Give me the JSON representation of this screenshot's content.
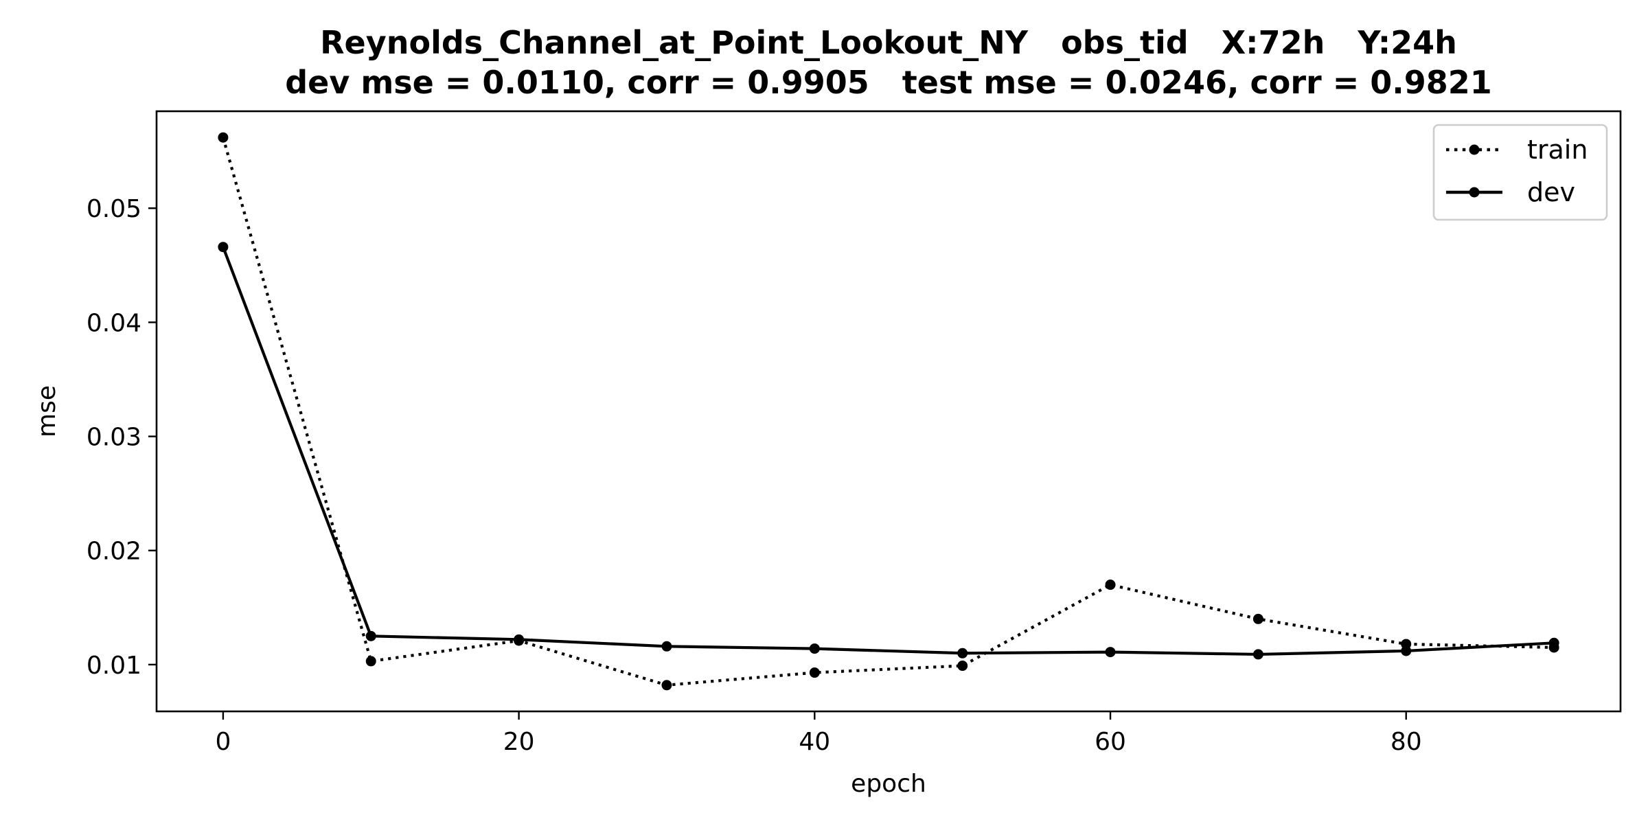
{
  "chart_data": {
    "type": "line",
    "title_line1": "Reynolds_Channel_at_Point_Lookout_NY   obs_tid   X:72h   Y:24h",
    "title_line2": "dev mse = 0.0110, corr = 0.9905   test mse = 0.0246, corr = 0.9821",
    "xlabel": "epoch",
    "ylabel": "mse",
    "x": [
      0,
      10,
      20,
      30,
      40,
      50,
      60,
      70,
      80,
      90
    ],
    "xlim": [
      -4.5,
      94.5
    ],
    "ylim": [
      0.0059,
      0.0585
    ],
    "xticks": [
      0,
      20,
      40,
      60,
      80
    ],
    "xtick_labels": [
      "0",
      "20",
      "40",
      "60",
      "80"
    ],
    "yticks": [
      0.01,
      0.02,
      0.03,
      0.04,
      0.05
    ],
    "ytick_labels": [
      "0.01",
      "0.02",
      "0.03",
      "0.04",
      "0.05"
    ],
    "grid": false,
    "legend_position": "top-right",
    "series": [
      {
        "name": "train",
        "linestyle": "dotted",
        "marker": "dot",
        "color": "#000000",
        "values": [
          0.0562,
          0.0103,
          0.0121,
          0.0082,
          0.0093,
          0.0099,
          0.017,
          0.014,
          0.0118,
          0.0115
        ]
      },
      {
        "name": "dev",
        "linestyle": "solid",
        "marker": "dot",
        "color": "#000000",
        "values": [
          0.0466,
          0.0125,
          0.0122,
          0.0116,
          0.0114,
          0.011,
          0.0111,
          0.0109,
          0.0112,
          0.0119
        ]
      }
    ]
  }
}
